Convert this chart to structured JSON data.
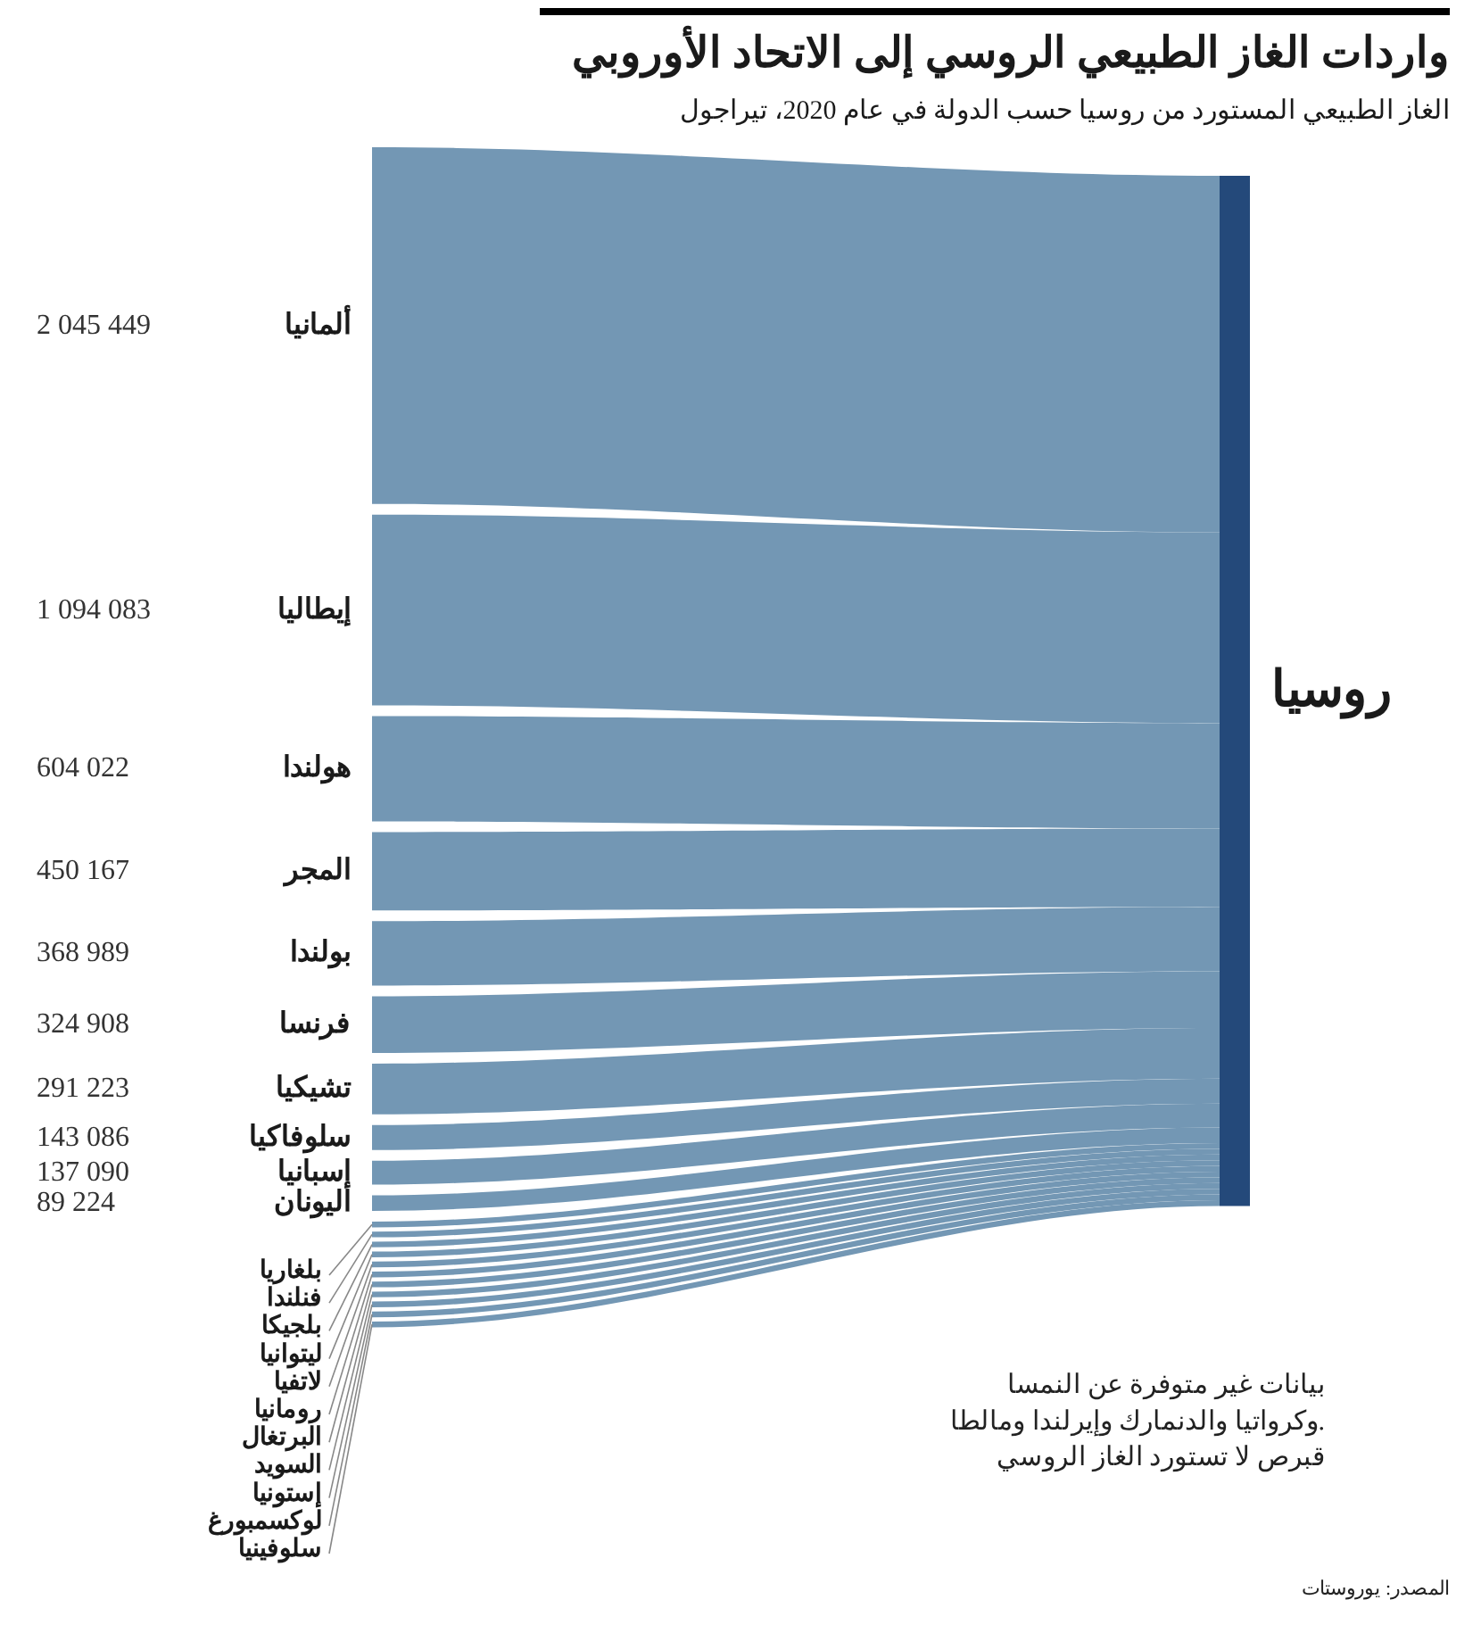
{
  "chart_data": {
    "type": "other",
    "title": "واردات الغاز الطبيعي الروسي إلى الاتحاد الأوروبي",
    "subtitle": "الغاز الطبيعي المستورد من روسيا حسب الدولة في عام 2020، تيراجول",
    "categories": [
      "ألمانيا",
      "إيطاليا",
      "هولندا",
      "المجر",
      "بولندا",
      "فرنسا",
      "تشيكيا",
      "سلوفاكيا",
      "إسبانيا",
      "اليونان",
      "بلغاريا",
      "فنلندا",
      "بلجيكا",
      "ليتوانيا",
      "لاتفيا",
      "رومانيا",
      "البرتغال",
      "السويد",
      "إستونيا",
      "لوكسمبورغ",
      "سلوفينيا"
    ],
    "series": [
      {
        "color": "#7397b4",
        "values": [
          2045449,
          1094083,
          604022,
          450167,
          368989,
          324908,
          291223,
          143086,
          137090,
          89224,
          null,
          null,
          null,
          null,
          null,
          null,
          null,
          null,
          null,
          null,
          null
        ],
        "value_labels": [
          "2 045 449",
          "1 094 083",
          "604 022",
          "450 167",
          "368 989",
          "324 908",
          "291 223",
          "143 086",
          "137 090",
          "89 224",
          null,
          null,
          null,
          null,
          null,
          null,
          null,
          null,
          null,
          null,
          null
        ]
      }
    ],
    "annotations": [
      "روسيا",
      "بيانات غير متوفرة عن النمسا\nوكرواتيا والدنمارك وإيرلندا ومالطا.\nقبرص لا تستورد الغاز الروسي",
      "المصدر: يوروستات"
    ]
  }
}
